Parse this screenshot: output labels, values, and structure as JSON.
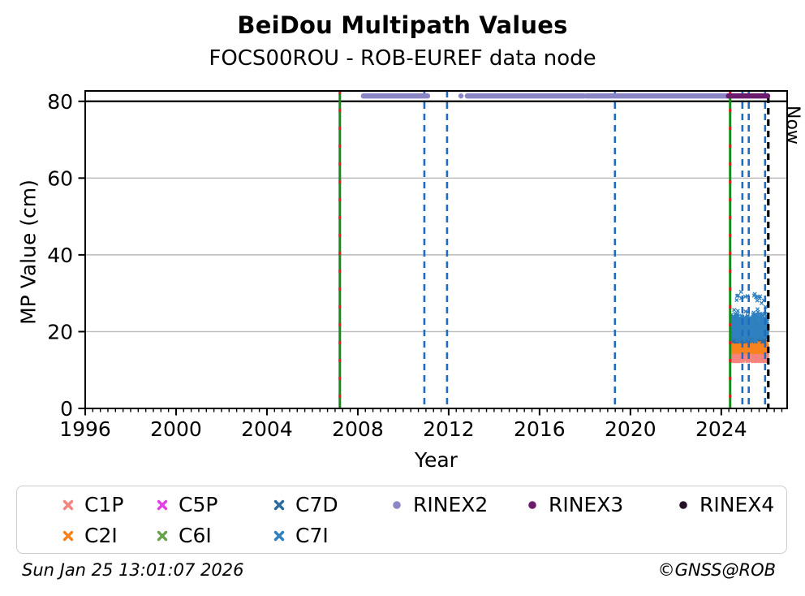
{
  "chart_data": {
    "type": "scatter",
    "title": "BeiDou Multipath Values",
    "subtitle": "FOCS00ROU - ROB-EUREF data node",
    "xlabel": "Year",
    "ylabel": "MP Value (cm)",
    "xlim": [
      1996,
      2026.9
    ],
    "ylim": [
      0,
      82.7
    ],
    "xticks": [
      1996,
      2000,
      2004,
      2008,
      2012,
      2016,
      2020,
      2024
    ],
    "yticks": [
      0,
      20,
      40,
      60,
      80
    ],
    "x_minor_step_years": 0.33333,
    "grid": {
      "horizontal_at": [
        20,
        40,
        60
      ],
      "color": "#bababa"
    },
    "threshold_line": {
      "y": 80,
      "color": "#000000"
    },
    "vlines": [
      {
        "name": "event-2007-green",
        "x": 2007.21,
        "style": "solid",
        "color": "#168a16",
        "overlay_color": "#d62021"
      },
      {
        "name": "event-2024-green",
        "x": 2024.39,
        "style": "solid",
        "color": "#168a16",
        "overlay_color": "#d62021"
      },
      {
        "name": "event-2010-blue",
        "x": 2010.93,
        "style": "dashed",
        "color": "#1e6cc2"
      },
      {
        "name": "event-2011-blue",
        "x": 2011.93,
        "style": "dashed",
        "color": "#1e6cc2"
      },
      {
        "name": "event-2019-blue",
        "x": 2019.32,
        "style": "dashed",
        "color": "#1e6cc2"
      },
      {
        "name": "event-2024-blue",
        "x": 2024.93,
        "style": "dashed",
        "color": "#1e6cc2"
      },
      {
        "name": "event-2025a-blue",
        "x": 2025.21,
        "style": "dashed",
        "color": "#1e6cc2"
      },
      {
        "name": "event-2025b-blue",
        "x": 2025.93,
        "style": "dashed",
        "color": "#1e6cc2"
      }
    ],
    "now_line": {
      "x": 2026.07,
      "label": "Now",
      "color": "#000000",
      "style": "dashed"
    },
    "rinex_tracks": [
      {
        "name": "RINEX2",
        "color": "#8b87c7",
        "y": 81.4,
        "segments": [
          [
            2008.25,
            2011.07
          ],
          [
            2012.82,
            2017.95
          ],
          [
            2018.07,
            2024.32
          ]
        ],
        "points": [
          2012.54
        ]
      },
      {
        "name": "RINEX3",
        "color": "#6b1b6d",
        "y": 81.4,
        "segments": [
          [
            2024.32,
            2026.04
          ]
        ],
        "points": []
      }
    ],
    "scatter_series": [
      {
        "name": "C1P",
        "color": "#f5837e",
        "x_range": [
          2024.45,
          2026.03
        ],
        "y_mean": 14.0,
        "y_sd": 0.9,
        "y_min": 12.3,
        "y_max": 16.3,
        "n": 700
      },
      {
        "name": "C2I",
        "color": "#f8821d",
        "x_range": [
          2024.45,
          2026.03
        ],
        "y_mean": 16.2,
        "y_sd": 0.75,
        "y_min": 14.6,
        "y_max": 18.2,
        "n": 700
      },
      {
        "name": "C5P",
        "color": "#e43fe4",
        "x_range": [
          2024.45,
          2026.03
        ],
        "y_mean": 14.5,
        "y_sd": 0.6,
        "y_min": 13.2,
        "y_max": 15.8,
        "n": 0
      },
      {
        "name": "C6I",
        "color": "#69a24c",
        "x_range": [
          2024.45,
          2026.03
        ],
        "y_mean": 16.5,
        "y_sd": 0.6,
        "y_min": 15.2,
        "y_max": 17.8,
        "n": 0
      },
      {
        "name": "C7D",
        "color": "#2d6a9e",
        "x_range": [
          2024.45,
          2026.03
        ],
        "y_mean": 19.6,
        "y_sd": 1.0,
        "y_min": 17.4,
        "y_max": 23.0,
        "n": 750
      },
      {
        "name": "C7I",
        "color": "#2f80bf",
        "x_range": [
          2024.45,
          2026.03
        ],
        "y_mean": 21.2,
        "y_sd": 1.5,
        "y_min": 17.6,
        "y_max": 26.2,
        "n": 950,
        "outliers": {
          "n": 26,
          "x_range": [
            2024.55,
            2025.95
          ],
          "y_min": 23.5,
          "y_max": 30.4
        }
      }
    ],
    "legend": {
      "entries": [
        {
          "label": "C1P",
          "marker": "x",
          "color": "#f5837e",
          "col": 0,
          "row": 0
        },
        {
          "label": "C5P",
          "marker": "x",
          "color": "#e43fe4",
          "col": 1,
          "row": 0
        },
        {
          "label": "C7D",
          "marker": "x",
          "color": "#2d6a9e",
          "col": 2,
          "row": 0
        },
        {
          "label": "RINEX2",
          "marker": "circle",
          "color": "#8b87c7",
          "col": 3,
          "row": 0
        },
        {
          "label": "RINEX3",
          "marker": "circle",
          "color": "#6b1b6d",
          "col": 4,
          "row": 0
        },
        {
          "label": "RINEX4",
          "marker": "circle",
          "color": "#261027",
          "col": 5,
          "row": 0
        },
        {
          "label": "C2I",
          "marker": "x",
          "color": "#f8821d",
          "col": 0,
          "row": 1
        },
        {
          "label": "C6I",
          "marker": "x",
          "color": "#69a24c",
          "col": 1,
          "row": 1
        },
        {
          "label": "C7I",
          "marker": "x",
          "color": "#2f80bf",
          "col": 2,
          "row": 1
        }
      ]
    },
    "footer": {
      "timestamp": "Sun Jan 25 13:01:07 2026",
      "credit": "©GNSS@ROB"
    }
  }
}
